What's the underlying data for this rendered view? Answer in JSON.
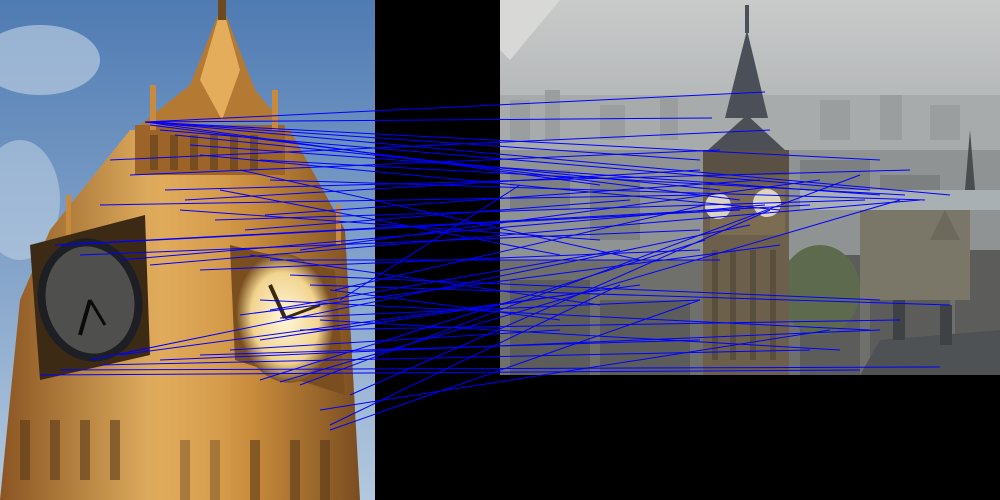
{
  "scene": {
    "left_image": {
      "subject": "clock-tower-closeup",
      "colors": {
        "sky_top": "#5f86b8",
        "sky_bottom": "#a9c1dc",
        "stone_light": "#e7b867",
        "stone_mid": "#b67a33",
        "stone_dark": "#5a3a18",
        "clock_face": "#fff3cc"
      }
    },
    "right_image": {
      "subject": "clock-tower-cityscape",
      "colors": {
        "haze": "#b9bcbd",
        "city": "#8b8f8f",
        "tower": "#6a5e4b",
        "spire": "#4b5058",
        "roof": "#5e6164"
      }
    },
    "match_lines": {
      "color": "#0000ff",
      "count": 60
    },
    "background": "#000000"
  }
}
